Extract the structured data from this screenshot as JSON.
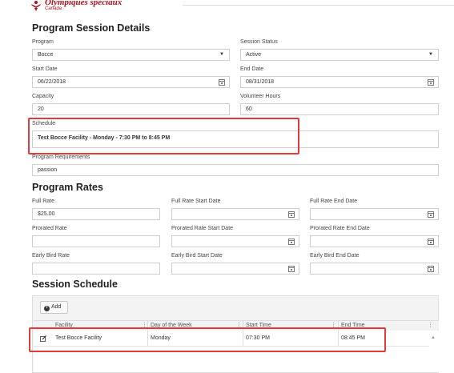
{
  "brand": {
    "name": "Olympiques spéciaux",
    "sub": "Canada",
    "color": "#b0121b"
  },
  "session_details": {
    "title": "Program Session Details",
    "program": {
      "label": "Program",
      "value": "Bocce"
    },
    "session_status": {
      "label": "Session Status",
      "value": "Active"
    },
    "start_date": {
      "label": "Start Date",
      "value": "06/22/2018"
    },
    "end_date": {
      "label": "End Date",
      "value": "08/31/2018"
    },
    "capacity": {
      "label": "Capacity",
      "value": "20"
    },
    "volunteer_hours": {
      "label": "Volunteer Hours",
      "value": "60"
    },
    "schedule": {
      "label": "Schedule",
      "value": "Test Bocce Facility - Monday - 7:30 PM to 8:45 PM"
    },
    "requirements": {
      "label": "Program Requirements",
      "value": "passion"
    }
  },
  "rates": {
    "title": "Program Rates",
    "full_rate": {
      "label": "Full Rate",
      "value": "$25.00"
    },
    "full_rate_start": {
      "label": "Full Rate Start Date",
      "value": ""
    },
    "full_rate_end": {
      "label": "Full Rate End Date",
      "value": ""
    },
    "prorated_rate": {
      "label": "Prorated Rate",
      "value": ""
    },
    "prorated_rate_start": {
      "label": "Prorated Rate Start Date",
      "value": ""
    },
    "prorated_rate_end": {
      "label": "Prorated Rate End Date",
      "value": ""
    },
    "early_bird_rate": {
      "label": "Early Bird Rate",
      "value": ""
    },
    "early_bird_start": {
      "label": "Early Bird Start Date",
      "value": ""
    },
    "early_bird_end": {
      "label": "Early Bird End Date",
      "value": ""
    }
  },
  "session_schedule": {
    "title": "Session Schedule",
    "add_label": "Add",
    "columns": [
      "Facility",
      "Day of the Week",
      "Start Time",
      "End Time"
    ],
    "rows": [
      {
        "facility": "Test Bocce Facility",
        "day": "Monday",
        "start": "07:30 PM",
        "end": "08:45 PM"
      }
    ]
  },
  "icons": {
    "dropdown": "chevron-down-icon",
    "date": "calendar-icon",
    "add": "plus-circle-icon",
    "edit": "edit-icon",
    "column_menu": "column-menu-icon"
  },
  "colors": {
    "highlight": "#e23b3b",
    "border": "#cfcfcf",
    "grid_header": "#f3f3f3"
  }
}
